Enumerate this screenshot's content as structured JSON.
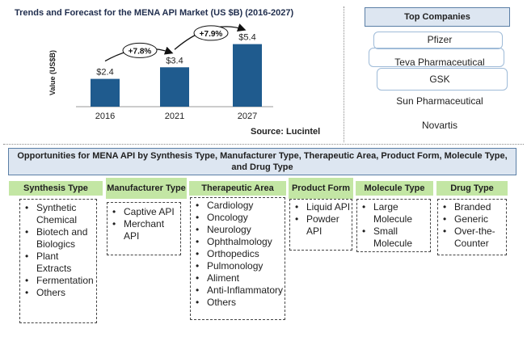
{
  "chart_data": {
    "type": "bar",
    "title": "Trends and Forecast for the MENA API Market (US $B) (2016-2027)",
    "ylabel": "Value (US$B)",
    "xlabel": "",
    "categories": [
      "2016",
      "2021",
      "2027"
    ],
    "values": [
      2.4,
      3.4,
      5.4
    ],
    "data_labels": [
      "$2.4",
      "$3.4",
      "$5.4"
    ],
    "growth_labels": [
      "+7.8%",
      "+7.9%"
    ],
    "ylim": [
      0,
      6
    ],
    "grid": false,
    "bar_color": "#1f5b8e",
    "source": "Source: Lucintel"
  },
  "top_companies": {
    "title": "Top Companies",
    "items": [
      "Pfizer",
      "Teva Pharmaceutical",
      "GSK",
      "Sun Pharmaceutical",
      "Novartis"
    ]
  },
  "opportunities": {
    "title": "Opportunities for MENA API by Synthesis Type, Manufacturer Type, Therapeutic Area, Product Form, Molecule Type, and Drug Type",
    "columns": [
      {
        "header": "Synthesis Type",
        "items": [
          "Synthetic Chemical",
          "Biotech and Biologics",
          "Plant Extracts",
          "Fermentation",
          "Others"
        ]
      },
      {
        "header": "Manufacturer Type",
        "items": [
          "Captive API",
          "Merchant API"
        ]
      },
      {
        "header": "Therapeutic Area",
        "items": [
          "Cardiology",
          "Oncology",
          "Neurology",
          "Ophthalmology",
          "Orthopedics",
          "Pulmonology",
          "Aliment",
          "Anti-Inflammatory",
          "Others"
        ]
      },
      {
        "header": "Product Form",
        "items": [
          "Liquid API",
          "Powder API"
        ]
      },
      {
        "header": "Molecule Type",
        "items": [
          "Large Molecule",
          "Small Molecule"
        ]
      },
      {
        "header": "Drug Type",
        "items": [
          "Branded",
          "Generic",
          "Over-the-Counter"
        ]
      }
    ]
  },
  "colors": {
    "header_green": "#c3e6a4",
    "title_box_fill": "#dde6f1",
    "title_box_border": "#5b7fa6"
  }
}
